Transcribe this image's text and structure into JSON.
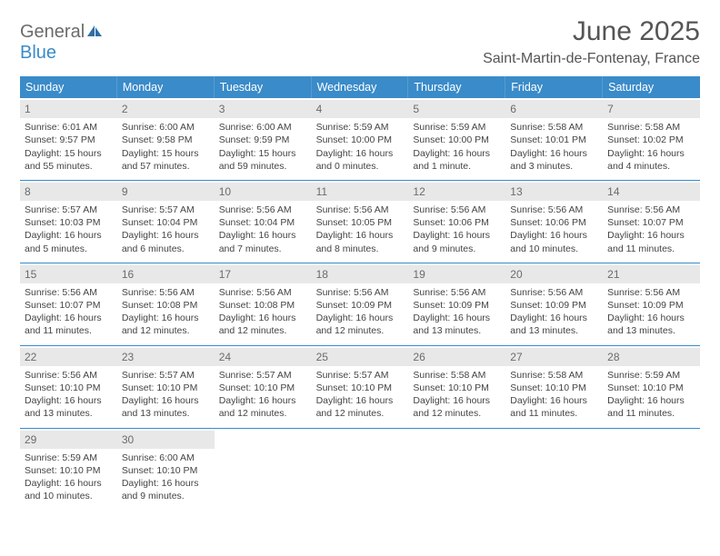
{
  "brand": {
    "word1": "General",
    "word2": "Blue"
  },
  "title": "June 2025",
  "location": "Saint-Martin-de-Fontenay, France",
  "style": {
    "header_bg": "#3a8bc9",
    "header_fg": "#ffffff",
    "daynum_bg": "#e8e8e8",
    "row_border": "#3a8bc9",
    "title_color": "#555555",
    "text_color": "#444444",
    "title_fontsize": 30,
    "location_fontsize": 16,
    "weekday_fontsize": 12.5,
    "body_fontsize": 10.5
  },
  "weekdays": [
    "Sunday",
    "Monday",
    "Tuesday",
    "Wednesday",
    "Thursday",
    "Friday",
    "Saturday"
  ],
  "days": [
    {
      "n": "1",
      "sunrise": "6:01 AM",
      "sunset": "9:57 PM",
      "daylight": "15 hours and 55 minutes."
    },
    {
      "n": "2",
      "sunrise": "6:00 AM",
      "sunset": "9:58 PM",
      "daylight": "15 hours and 57 minutes."
    },
    {
      "n": "3",
      "sunrise": "6:00 AM",
      "sunset": "9:59 PM",
      "daylight": "15 hours and 59 minutes."
    },
    {
      "n": "4",
      "sunrise": "5:59 AM",
      "sunset": "10:00 PM",
      "daylight": "16 hours and 0 minutes."
    },
    {
      "n": "5",
      "sunrise": "5:59 AM",
      "sunset": "10:00 PM",
      "daylight": "16 hours and 1 minute."
    },
    {
      "n": "6",
      "sunrise": "5:58 AM",
      "sunset": "10:01 PM",
      "daylight": "16 hours and 3 minutes."
    },
    {
      "n": "7",
      "sunrise": "5:58 AM",
      "sunset": "10:02 PM",
      "daylight": "16 hours and 4 minutes."
    },
    {
      "n": "8",
      "sunrise": "5:57 AM",
      "sunset": "10:03 PM",
      "daylight": "16 hours and 5 minutes."
    },
    {
      "n": "9",
      "sunrise": "5:57 AM",
      "sunset": "10:04 PM",
      "daylight": "16 hours and 6 minutes."
    },
    {
      "n": "10",
      "sunrise": "5:56 AM",
      "sunset": "10:04 PM",
      "daylight": "16 hours and 7 minutes."
    },
    {
      "n": "11",
      "sunrise": "5:56 AM",
      "sunset": "10:05 PM",
      "daylight": "16 hours and 8 minutes."
    },
    {
      "n": "12",
      "sunrise": "5:56 AM",
      "sunset": "10:06 PM",
      "daylight": "16 hours and 9 minutes."
    },
    {
      "n": "13",
      "sunrise": "5:56 AM",
      "sunset": "10:06 PM",
      "daylight": "16 hours and 10 minutes."
    },
    {
      "n": "14",
      "sunrise": "5:56 AM",
      "sunset": "10:07 PM",
      "daylight": "16 hours and 11 minutes."
    },
    {
      "n": "15",
      "sunrise": "5:56 AM",
      "sunset": "10:07 PM",
      "daylight": "16 hours and 11 minutes."
    },
    {
      "n": "16",
      "sunrise": "5:56 AM",
      "sunset": "10:08 PM",
      "daylight": "16 hours and 12 minutes."
    },
    {
      "n": "17",
      "sunrise": "5:56 AM",
      "sunset": "10:08 PM",
      "daylight": "16 hours and 12 minutes."
    },
    {
      "n": "18",
      "sunrise": "5:56 AM",
      "sunset": "10:09 PM",
      "daylight": "16 hours and 12 minutes."
    },
    {
      "n": "19",
      "sunrise": "5:56 AM",
      "sunset": "10:09 PM",
      "daylight": "16 hours and 13 minutes."
    },
    {
      "n": "20",
      "sunrise": "5:56 AM",
      "sunset": "10:09 PM",
      "daylight": "16 hours and 13 minutes."
    },
    {
      "n": "21",
      "sunrise": "5:56 AM",
      "sunset": "10:09 PM",
      "daylight": "16 hours and 13 minutes."
    },
    {
      "n": "22",
      "sunrise": "5:56 AM",
      "sunset": "10:10 PM",
      "daylight": "16 hours and 13 minutes."
    },
    {
      "n": "23",
      "sunrise": "5:57 AM",
      "sunset": "10:10 PM",
      "daylight": "16 hours and 13 minutes."
    },
    {
      "n": "24",
      "sunrise": "5:57 AM",
      "sunset": "10:10 PM",
      "daylight": "16 hours and 12 minutes."
    },
    {
      "n": "25",
      "sunrise": "5:57 AM",
      "sunset": "10:10 PM",
      "daylight": "16 hours and 12 minutes."
    },
    {
      "n": "26",
      "sunrise": "5:58 AM",
      "sunset": "10:10 PM",
      "daylight": "16 hours and 12 minutes."
    },
    {
      "n": "27",
      "sunrise": "5:58 AM",
      "sunset": "10:10 PM",
      "daylight": "16 hours and 11 minutes."
    },
    {
      "n": "28",
      "sunrise": "5:59 AM",
      "sunset": "10:10 PM",
      "daylight": "16 hours and 11 minutes."
    },
    {
      "n": "29",
      "sunrise": "5:59 AM",
      "sunset": "10:10 PM",
      "daylight": "16 hours and 10 minutes."
    },
    {
      "n": "30",
      "sunrise": "6:00 AM",
      "sunset": "10:10 PM",
      "daylight": "16 hours and 9 minutes."
    }
  ],
  "labels": {
    "sunrise": "Sunrise: ",
    "sunset": "Sunset: ",
    "daylight": "Daylight: "
  }
}
